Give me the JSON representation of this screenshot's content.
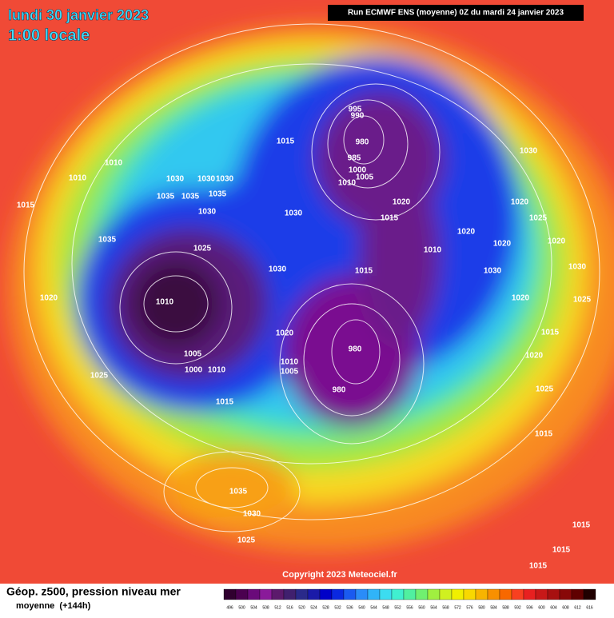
{
  "header": {
    "date": "lundi 30 janvier 2023",
    "time": "1:00 locale",
    "run": "Run ECMWF ENS (moyenne) 0Z du mardi 24 janvier 2023"
  },
  "copyright": "Copyright 2023 Meteociel.fr",
  "legend": {
    "title": "Géop. z500, pression niveau mer",
    "subtitle": "moyenne  (+144h)",
    "levels": [
      496,
      500,
      504,
      508,
      512,
      516,
      520,
      524,
      528,
      532,
      536,
      540,
      544,
      548,
      552,
      556,
      560,
      564,
      568,
      572,
      576,
      580,
      584,
      588,
      592,
      596,
      600,
      604,
      608,
      612,
      616
    ],
    "colors": [
      "#30002f",
      "#4b0050",
      "#6a0a7a",
      "#8a1a9a",
      "#5c1a6c",
      "#40206e",
      "#2a2a8a",
      "#1a1aa8",
      "#0000c8",
      "#0a28e0",
      "#1a5af0",
      "#2a8cf8",
      "#30b4f8",
      "#3cdcf0",
      "#40f0d0",
      "#50f0a0",
      "#70f070",
      "#a0f040",
      "#d0f020",
      "#f0f000",
      "#f8d800",
      "#f8b400",
      "#f89000",
      "#f86800",
      "#f84020",
      "#e82020",
      "#c81818",
      "#a81010",
      "#880808",
      "#600000",
      "#200000"
    ]
  },
  "isobar_labels": [
    "995",
    "990",
    "980",
    "985",
    "1000",
    "1005",
    "1010",
    "1020",
    "1015",
    "1015",
    "1030",
    "1010",
    "1010",
    "1030",
    "1030",
    "1030",
    "1035",
    "1035",
    "1035",
    "1030",
    "1030",
    "1015",
    "1035",
    "1025",
    "1030",
    "1010",
    "1015",
    "1020",
    "1020",
    "1025",
    "1020",
    "1030",
    "1010",
    "1020",
    "1020",
    "980",
    "1005",
    "1000",
    "1010",
    "1010",
    "1005",
    "980",
    "1025",
    "1015",
    "1035",
    "1030",
    "1025",
    "1015",
    "1015",
    "1015",
    "1015",
    "1025",
    "1020",
    "1020",
    "1015",
    "1025",
    "1030",
    "1020"
  ]
}
